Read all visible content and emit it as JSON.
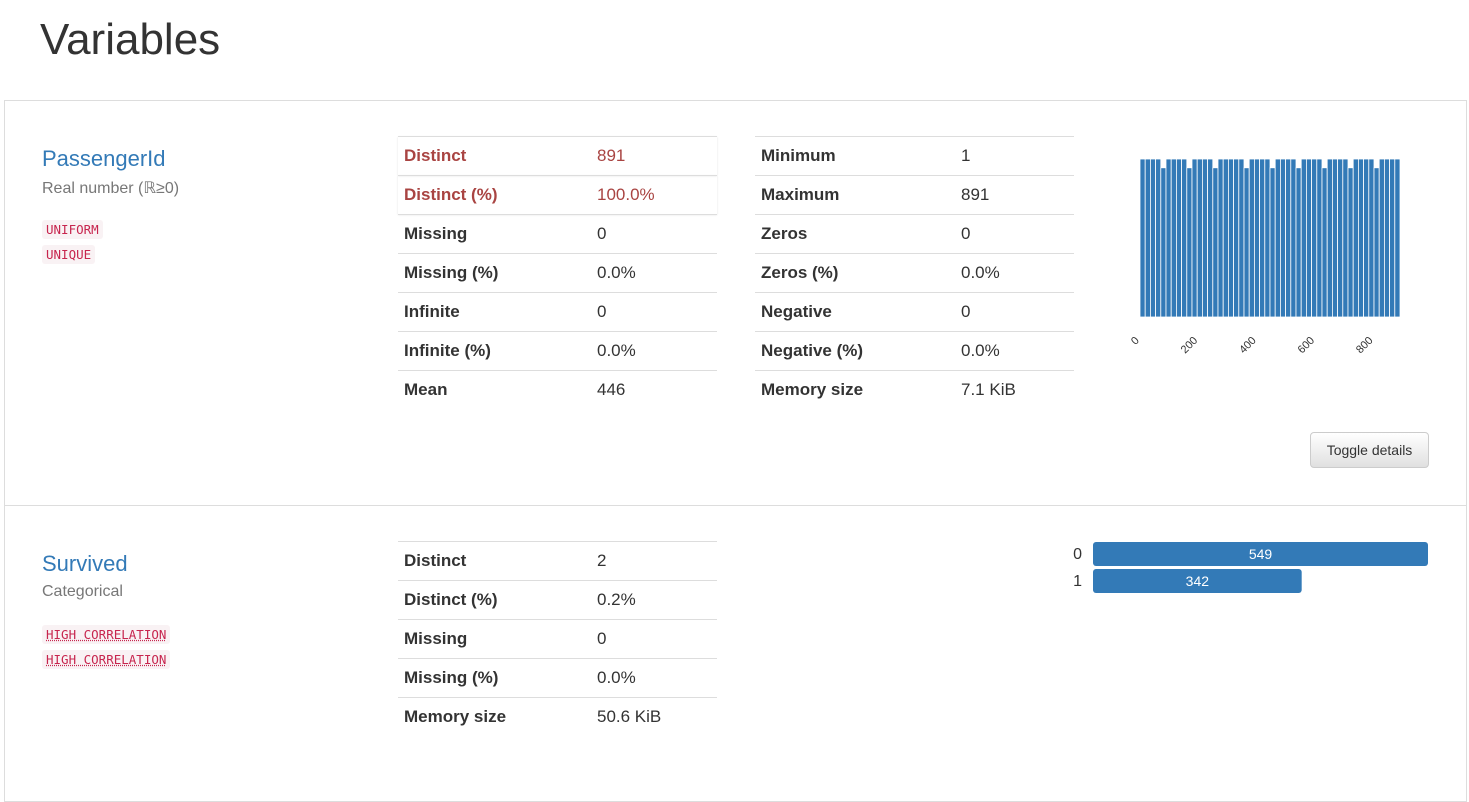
{
  "header": {
    "title": "Variables"
  },
  "variables": [
    {
      "name": "PassengerId",
      "type": "Real number (ℝ≥0)",
      "tags": [
        "UNIFORM",
        "UNIQUE"
      ],
      "table1": [
        {
          "label": "Distinct",
          "value": "891",
          "warning": true
        },
        {
          "label": "Distinct (%)",
          "value": "100.0%",
          "warning": true
        },
        {
          "label": "Missing",
          "value": "0"
        },
        {
          "label": "Missing (%)",
          "value": "0.0%"
        },
        {
          "label": "Infinite",
          "value": "0"
        },
        {
          "label": "Infinite (%)",
          "value": "0.0%"
        },
        {
          "label": "Mean",
          "value": "446"
        }
      ],
      "table2": [
        {
          "label": "Minimum",
          "value": "1"
        },
        {
          "label": "Maximum",
          "value": "891"
        },
        {
          "label": "Zeros",
          "value": "0"
        },
        {
          "label": "Zeros (%)",
          "value": "0.0%"
        },
        {
          "label": "Negative",
          "value": "0"
        },
        {
          "label": "Negative (%)",
          "value": "0.0%"
        },
        {
          "label": "Memory size",
          "value": "7.1 KiB"
        }
      ],
      "chart_data": {
        "type": "histogram",
        "color": "#337ab7",
        "bins": [
          1,
          18.8,
          36.6,
          54.4,
          72.2,
          90,
          107.8,
          125.6,
          143.4,
          161.2,
          179,
          196.8,
          214.6,
          232.4,
          250.2,
          268,
          285.8,
          303.6,
          321.4,
          339.2,
          357,
          374.8,
          392.6,
          410.4,
          428.2,
          446,
          463.8,
          481.6,
          499.4,
          517.2,
          535,
          552.8,
          570.6,
          588.4,
          606.2,
          624,
          641.8,
          659.6,
          677.4,
          695.2,
          713,
          730.8,
          748.6,
          766.4,
          784.2,
          802,
          819.8,
          837.6,
          855.4,
          873.2,
          891
        ],
        "counts": [
          18,
          18,
          18,
          18,
          17,
          18,
          18,
          18,
          18,
          17,
          18,
          18,
          18,
          18,
          17,
          18,
          18,
          18,
          18,
          18,
          17,
          18,
          18,
          18,
          18,
          17,
          18,
          18,
          18,
          18,
          17,
          18,
          18,
          18,
          18,
          17,
          18,
          18,
          18,
          18,
          17,
          18,
          18,
          18,
          18,
          17,
          18,
          18,
          18,
          18
        ],
        "xlim": [
          1,
          891
        ],
        "ylim": [
          0,
          18
        ],
        "xticks": [
          0,
          200,
          400,
          600,
          800
        ]
      },
      "button": "Toggle details"
    },
    {
      "name": "Survived",
      "type": "Categorical",
      "tags": [
        "HIGH CORRELATION",
        "HIGH CORRELATION"
      ],
      "table1": [
        {
          "label": "Distinct",
          "value": "2"
        },
        {
          "label": "Distinct (%)",
          "value": "0.2%"
        },
        {
          "label": "Missing",
          "value": "0"
        },
        {
          "label": "Missing (%)",
          "value": "0.0%"
        },
        {
          "label": "Memory size",
          "value": "50.6 KiB"
        }
      ],
      "chart_data": {
        "type": "bar",
        "orientation": "horizontal",
        "color": "#337ab7",
        "categories": [
          "0",
          "1"
        ],
        "values": [
          549,
          342
        ],
        "xlim": [
          0,
          549
        ]
      }
    }
  ]
}
